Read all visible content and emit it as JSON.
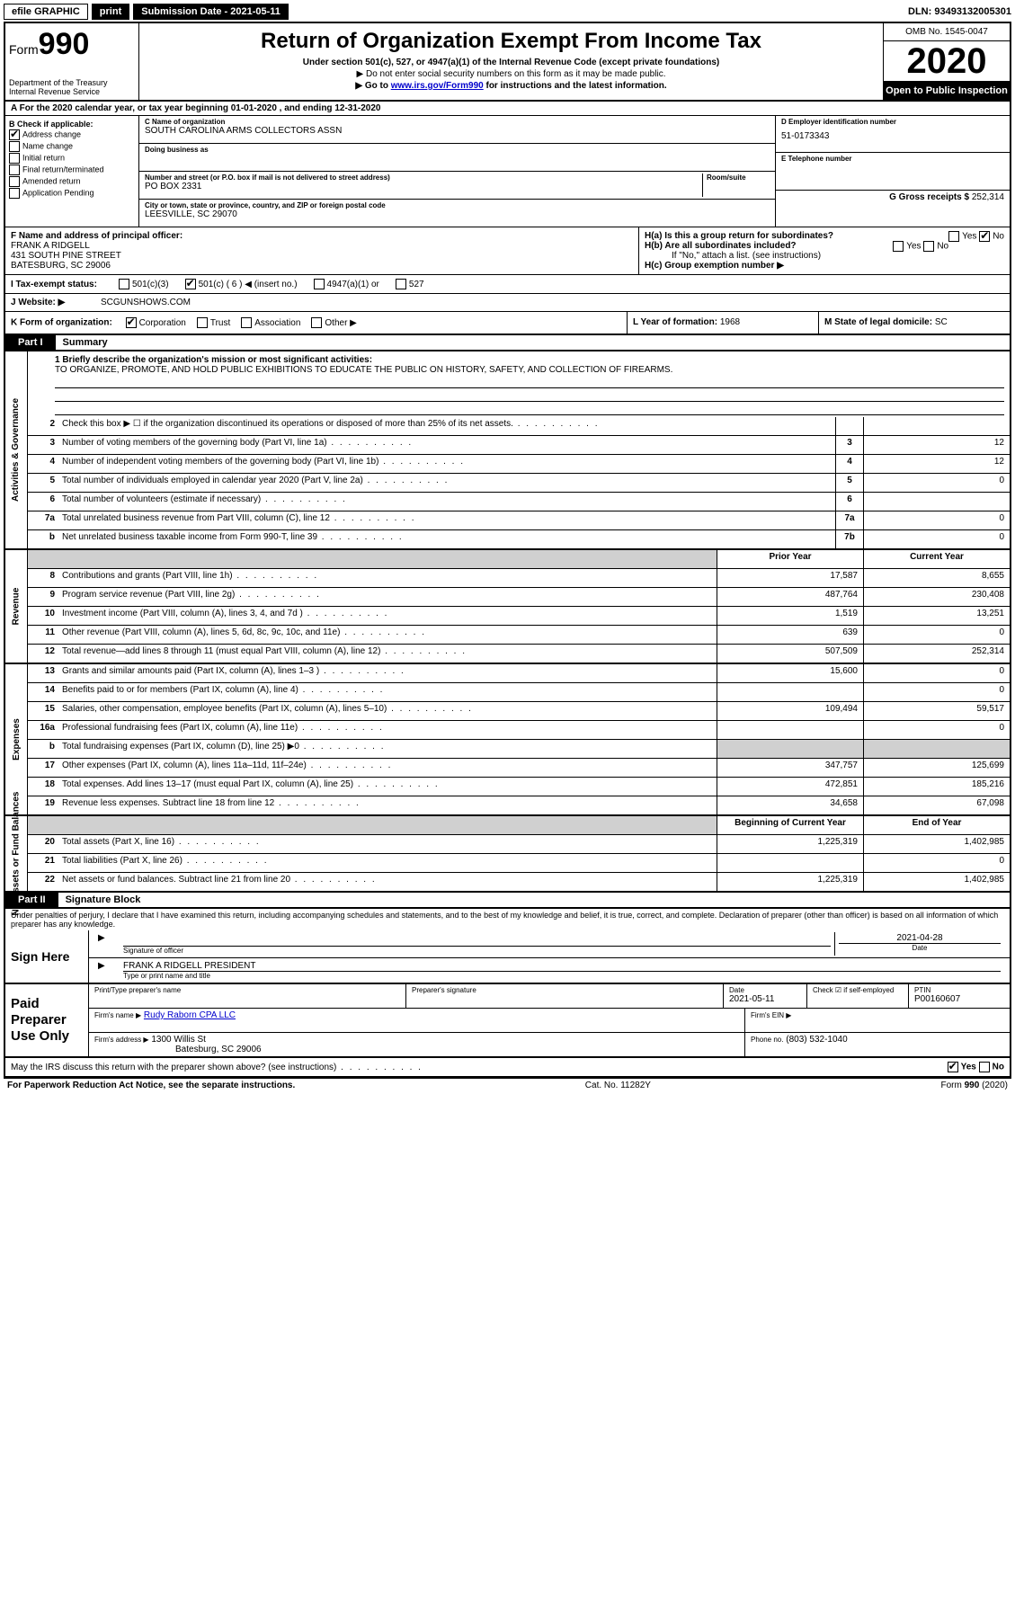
{
  "topbar": {
    "efile": "efile GRAPHIC",
    "print": "print",
    "submission_label": "Submission Date - 2021-05-11",
    "dln": "DLN: 93493132005301"
  },
  "header": {
    "form_prefix": "Form",
    "form_number": "990",
    "title": "Return of Organization Exempt From Income Tax",
    "subtitle": "Under section 501(c), 527, or 4947(a)(1) of the Internal Revenue Code (except private foundations)",
    "note1": "▶ Do not enter social security numbers on this form as it may be made public.",
    "note2_prefix": "▶ Go to ",
    "note2_link": "www.irs.gov/Form990",
    "note2_suffix": " for instructions and the latest information.",
    "dept": "Department of the Treasury\nInternal Revenue Service",
    "omb": "OMB No. 1545-0047",
    "year": "2020",
    "open": "Open to Public Inspection"
  },
  "row_a": "A For the 2020 calendar year, or tax year beginning 01-01-2020    , and ending 12-31-2020",
  "box_b": {
    "label": "B Check if applicable:",
    "items": [
      {
        "label": "Address change",
        "checked": true
      },
      {
        "label": "Name change",
        "checked": false
      },
      {
        "label": "Initial return",
        "checked": false
      },
      {
        "label": "Final return/terminated",
        "checked": false
      },
      {
        "label": "Amended return",
        "checked": false
      },
      {
        "label": "Application Pending",
        "checked": false
      }
    ]
  },
  "box_c": {
    "name_label": "C Name of organization",
    "name": "SOUTH CAROLINA ARMS COLLECTORS ASSN",
    "dba_label": "Doing business as",
    "dba": "",
    "street_label": "Number and street (or P.O. box if mail is not delivered to street address)",
    "room_label": "Room/suite",
    "street": "PO BOX 2331",
    "city_label": "City or town, state or province, country, and ZIP or foreign postal code",
    "city": "LEESVILLE, SC  29070"
  },
  "box_d": {
    "label": "D Employer identification number",
    "value": "51-0173343",
    "e_label": "E Telephone number",
    "e_value": "",
    "g_label": "G Gross receipts $",
    "g_value": "252,314"
  },
  "box_f": {
    "label": "F Name and address of principal officer:",
    "name": "FRANK A RIDGELL",
    "street": "431 SOUTH PINE STREET",
    "city": "BATESBURG, SC  29006"
  },
  "box_h": {
    "a_label": "H(a)  Is this a group return for subordinates?",
    "a_yes": false,
    "a_no": true,
    "b_label": "H(b)  Are all subordinates included?",
    "b_note": "If \"No,\" attach a list. (see instructions)",
    "c_label": "H(c)  Group exemption number ▶"
  },
  "box_i": {
    "label": "I  Tax-exempt status:",
    "opts": [
      "501(c)(3)",
      "501(c) ( 6 ) ◀ (insert no.)",
      "4947(a)(1) or",
      "527"
    ],
    "checked_index": 1
  },
  "box_j": {
    "label": "J  Website: ▶",
    "value": "SCGUNSHOWS.COM"
  },
  "box_k": {
    "label": "K Form of organization:",
    "opts": [
      "Corporation",
      "Trust",
      "Association",
      "Other ▶"
    ],
    "checked_index": 0
  },
  "box_l": {
    "label": "L Year of formation:",
    "value": "1968"
  },
  "box_m": {
    "label": "M State of legal domicile:",
    "value": "SC"
  },
  "part1": {
    "tab": "Part I",
    "title": "Summary"
  },
  "mission": {
    "label": "1  Briefly describe the organization's mission or most significant activities:",
    "text": "TO ORGANIZE, PROMOTE, AND HOLD PUBLIC EXHIBITIONS TO EDUCATE THE PUBLIC ON HISTORY, SAFETY, AND COLLECTION OF FIREARMS."
  },
  "gov_lines": [
    {
      "num": "2",
      "desc": "Check this box ▶ ☐  if the organization discontinued its operations or disposed of more than 25% of its net assets.",
      "box": "",
      "amt": ""
    },
    {
      "num": "3",
      "desc": "Number of voting members of the governing body (Part VI, line 1a)",
      "box": "3",
      "amt": "12"
    },
    {
      "num": "4",
      "desc": "Number of independent voting members of the governing body (Part VI, line 1b)",
      "box": "4",
      "amt": "12"
    },
    {
      "num": "5",
      "desc": "Total number of individuals employed in calendar year 2020 (Part V, line 2a)",
      "box": "5",
      "amt": "0"
    },
    {
      "num": "6",
      "desc": "Total number of volunteers (estimate if necessary)",
      "box": "6",
      "amt": ""
    },
    {
      "num": "7a",
      "desc": "Total unrelated business revenue from Part VIII, column (C), line 12",
      "box": "7a",
      "amt": "0"
    },
    {
      "num": "b",
      "desc": "Net unrelated business taxable income from Form 990-T, line 39",
      "box": "7b",
      "amt": "0"
    }
  ],
  "rev_header": {
    "prior": "Prior Year",
    "current": "Current Year"
  },
  "rev_lines": [
    {
      "num": "8",
      "desc": "Contributions and grants (Part VIII, line 1h)",
      "prior": "17,587",
      "current": "8,655"
    },
    {
      "num": "9",
      "desc": "Program service revenue (Part VIII, line 2g)",
      "prior": "487,764",
      "current": "230,408"
    },
    {
      "num": "10",
      "desc": "Investment income (Part VIII, column (A), lines 3, 4, and 7d )",
      "prior": "1,519",
      "current": "13,251"
    },
    {
      "num": "11",
      "desc": "Other revenue (Part VIII, column (A), lines 5, 6d, 8c, 9c, 10c, and 11e)",
      "prior": "639",
      "current": "0"
    },
    {
      "num": "12",
      "desc": "Total revenue—add lines 8 through 11 (must equal Part VIII, column (A), line 12)",
      "prior": "507,509",
      "current": "252,314"
    }
  ],
  "exp_lines": [
    {
      "num": "13",
      "desc": "Grants and similar amounts paid (Part IX, column (A), lines 1–3 )",
      "prior": "15,600",
      "current": "0"
    },
    {
      "num": "14",
      "desc": "Benefits paid to or for members (Part IX, column (A), line 4)",
      "prior": "",
      "current": "0"
    },
    {
      "num": "15",
      "desc": "Salaries, other compensation, employee benefits (Part IX, column (A), lines 5–10)",
      "prior": "109,494",
      "current": "59,517"
    },
    {
      "num": "16a",
      "desc": "Professional fundraising fees (Part IX, column (A), line 11e)",
      "prior": "",
      "current": "0"
    },
    {
      "num": "b",
      "desc": "Total fundraising expenses (Part IX, column (D), line 25) ▶0",
      "prior": "shade",
      "current": "shade"
    },
    {
      "num": "17",
      "desc": "Other expenses (Part IX, column (A), lines 11a–11d, 11f–24e)",
      "prior": "347,757",
      "current": "125,699"
    },
    {
      "num": "18",
      "desc": "Total expenses. Add lines 13–17 (must equal Part IX, column (A), line 25)",
      "prior": "472,851",
      "current": "185,216"
    },
    {
      "num": "19",
      "desc": "Revenue less expenses. Subtract line 18 from line 12",
      "prior": "34,658",
      "current": "67,098"
    }
  ],
  "na_header": {
    "prior": "Beginning of Current Year",
    "current": "End of Year"
  },
  "na_lines": [
    {
      "num": "20",
      "desc": "Total assets (Part X, line 16)",
      "prior": "1,225,319",
      "current": "1,402,985"
    },
    {
      "num": "21",
      "desc": "Total liabilities (Part X, line 26)",
      "prior": "",
      "current": "0"
    },
    {
      "num": "22",
      "desc": "Net assets or fund balances. Subtract line 21 from line 20",
      "prior": "1,225,319",
      "current": "1,402,985"
    }
  ],
  "vlabels": {
    "gov": "Activities & Governance",
    "rev": "Revenue",
    "exp": "Expenses",
    "na": "Net Assets or Fund Balances"
  },
  "part2": {
    "tab": "Part II",
    "title": "Signature Block"
  },
  "penalties": "Under penalties of perjury, I declare that I have examined this return, including accompanying schedules and statements, and to the best of my knowledge and belief, it is true, correct, and complete. Declaration of preparer (other than officer) is based on all information of which preparer has any knowledge.",
  "sign": {
    "here": "Sign Here",
    "sig_label": "Signature of officer",
    "date": "2021-04-28",
    "date_label": "Date",
    "name": "FRANK A RIDGELL PRESIDENT",
    "name_label": "Type or print name and title"
  },
  "paid": {
    "label": "Paid Preparer Use Only",
    "h1": "Print/Type preparer's name",
    "h2": "Preparer's signature",
    "h3": "Date",
    "h3v": "2021-05-11",
    "h4": "Check ☑ if self-employed",
    "h5": "PTIN",
    "h5v": "P00160607",
    "firm_name_label": "Firm's name    ▶",
    "firm_name": "Rudy Raborn CPA LLC",
    "firm_ein_label": "Firm's EIN ▶",
    "firm_addr_label": "Firm's address ▶",
    "firm_addr": "1300 Willis St",
    "firm_addr2": "Batesburg, SC  29006",
    "phone_label": "Phone no.",
    "phone": "(803) 532-1040"
  },
  "discuss": {
    "q": "May the IRS discuss this return with the preparer shown above? (see instructions)",
    "yes": true,
    "no": false
  },
  "footer": {
    "left": "For Paperwork Reduction Act Notice, see the separate instructions.",
    "mid": "Cat. No. 11282Y",
    "right": "Form 990 (2020)"
  }
}
